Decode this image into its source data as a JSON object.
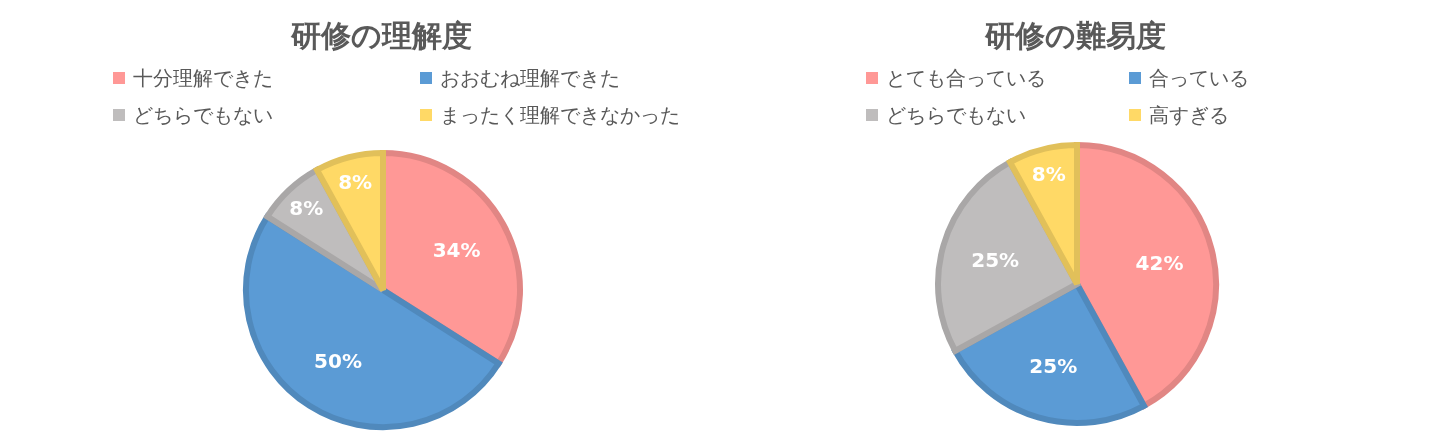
{
  "chart_data": [
    {
      "type": "pie",
      "title": "研修の理解度",
      "categories": [
        "十分理解できた",
        "おおむね理解できた",
        "どちらでもない",
        "まったく理解できなかった"
      ],
      "values": [
        34,
        50,
        8,
        8
      ],
      "value_labels": [
        "34%",
        "50%",
        "8%",
        "8%"
      ],
      "colors": [
        "#ff9896",
        "#5b9bd5",
        "#bfbdbd",
        "#ffd966"
      ],
      "legend": "top"
    },
    {
      "type": "pie",
      "title": "研修の難易度",
      "categories": [
        "とても合っている",
        "合っている",
        "どちらでもない",
        "高すぎる"
      ],
      "values": [
        42,
        25,
        25,
        8
      ],
      "value_labels": [
        "42%",
        "25%",
        "25%",
        "8%"
      ],
      "colors": [
        "#ff9896",
        "#5b9bd5",
        "#bfbdbd",
        "#ffd966"
      ],
      "legend": "top"
    }
  ]
}
